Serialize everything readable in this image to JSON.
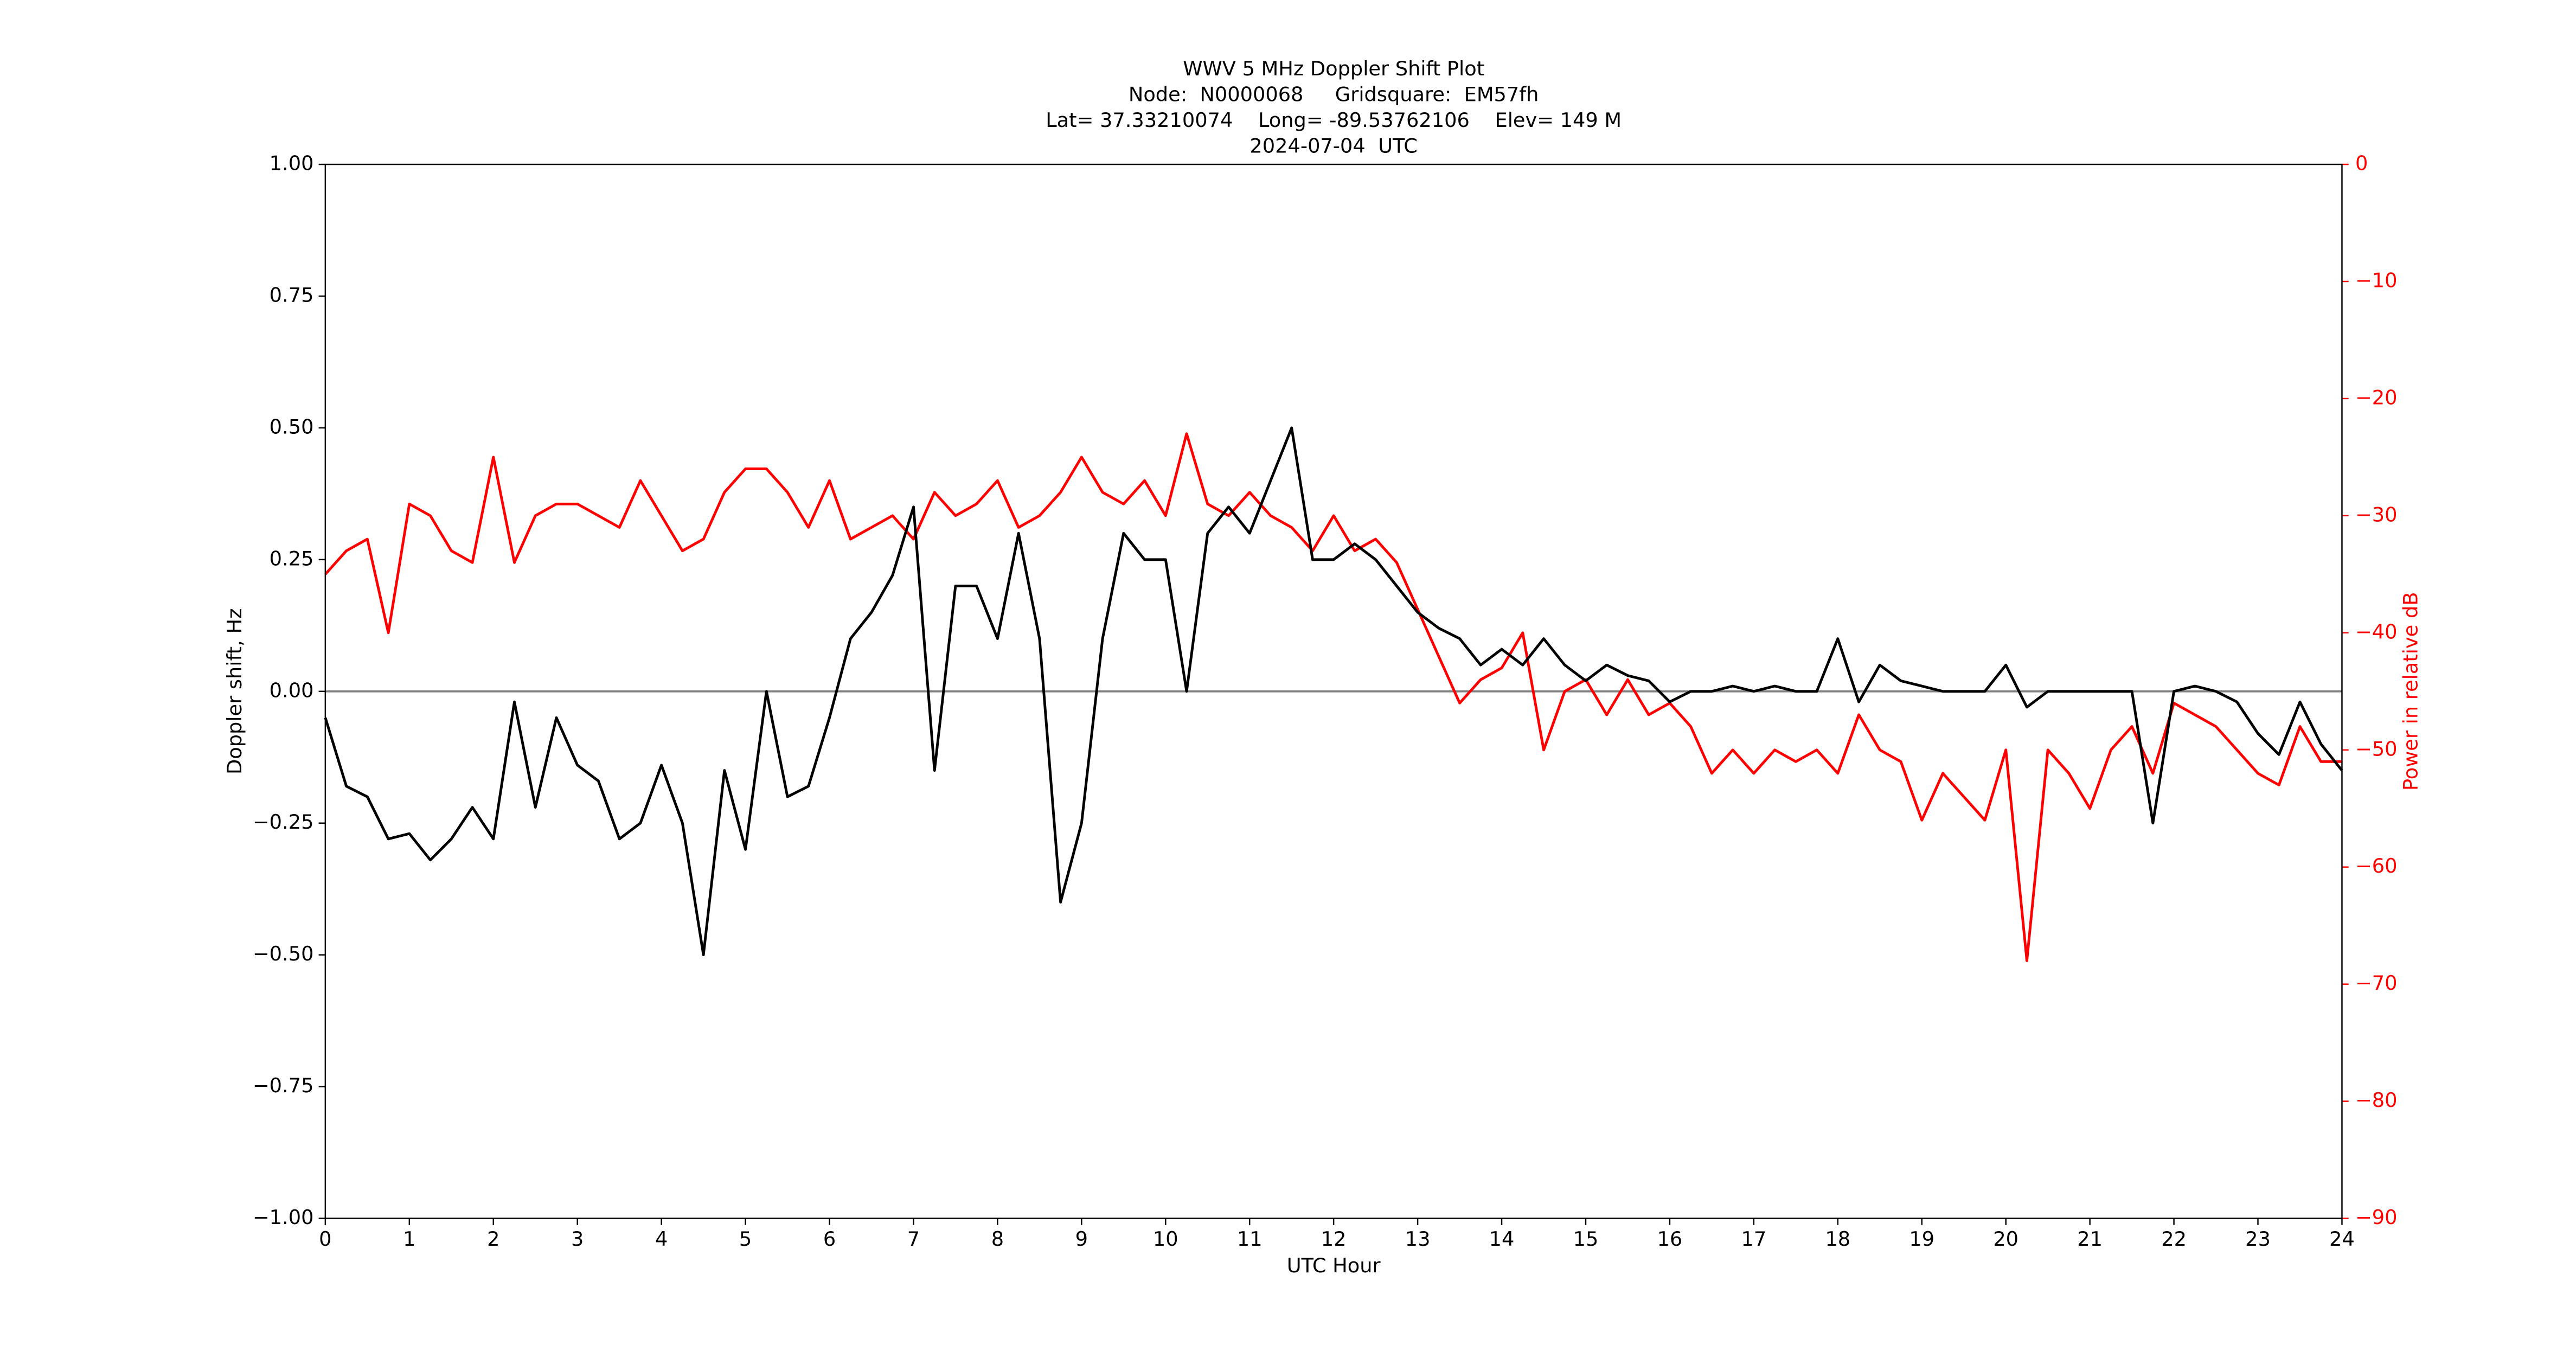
{
  "chart_data": {
    "type": "line",
    "title": [
      "WWV 5 MHz Doppler Shift Plot",
      "Node:  N0000068     Gridsquare:  EM57fh",
      "Lat= 37.33210074    Long= -89.53762106    Elev= 149 M",
      "2024-07-04  UTC"
    ],
    "x_label": "UTC Hour",
    "y_label": "Doppler shift, Hz",
    "y2_label": "Power in relative dB",
    "xlim": [
      0,
      24
    ],
    "xticks": [
      0,
      1,
      2,
      3,
      4,
      5,
      6,
      7,
      8,
      9,
      10,
      11,
      12,
      13,
      14,
      15,
      16,
      17,
      18,
      19,
      20,
      21,
      22,
      23,
      24
    ],
    "ylim": [
      -1,
      1
    ],
    "yticks": [
      {
        "value": -1,
        "label": "−1.00"
      },
      {
        "value": -0.75,
        "label": "−0.75"
      },
      {
        "value": -0.5,
        "label": "−0.50"
      },
      {
        "value": -0.25,
        "label": "−0.25"
      },
      {
        "value": 0,
        "label": "0.00"
      },
      {
        "value": 0.25,
        "label": "0.25"
      },
      {
        "value": 0.5,
        "label": "0.50"
      },
      {
        "value": 0.75,
        "label": "0.75"
      },
      {
        "value": 1,
        "label": "1.00"
      }
    ],
    "y2lim": [
      -90,
      0
    ],
    "y2ticks": [
      {
        "value": -90,
        "label": "−90"
      },
      {
        "value": -80,
        "label": "−80"
      },
      {
        "value": -70,
        "label": "−70"
      },
      {
        "value": -60,
        "label": "−60"
      },
      {
        "value": -50,
        "label": "−50"
      },
      {
        "value": -40,
        "label": "−40"
      },
      {
        "value": -30,
        "label": "−30"
      },
      {
        "value": -20,
        "label": "−20"
      },
      {
        "value": -10,
        "label": "−10"
      },
      0
    ],
    "y2_color": "#ff0000",
    "reference_line": 0,
    "reference_color": "#808080",
    "x": [
      0,
      0.25,
      0.5,
      0.75,
      1,
      1.25,
      1.5,
      1.75,
      2,
      2.25,
      2.5,
      2.75,
      3,
      3.25,
      3.5,
      3.75,
      4,
      4.25,
      4.5,
      4.75,
      5,
      5.25,
      5.5,
      5.75,
      6,
      6.25,
      6.5,
      6.75,
      7,
      7.25,
      7.5,
      7.75,
      8,
      8.25,
      8.5,
      8.75,
      9,
      9.25,
      9.5,
      9.75,
      10,
      10.25,
      10.5,
      10.75,
      11,
      11.25,
      11.5,
      11.75,
      12,
      12.25,
      12.5,
      12.75,
      13,
      13.25,
      13.5,
      13.75,
      14,
      14.25,
      14.5,
      14.75,
      15,
      15.25,
      15.5,
      15.75,
      16,
      16.25,
      16.5,
      16.75,
      17,
      17.25,
      17.5,
      17.75,
      18,
      18.25,
      18.5,
      18.75,
      19,
      19.25,
      19.5,
      19.75,
      20,
      20.25,
      20.5,
      20.75,
      21,
      21.25,
      21.5,
      21.75,
      22,
      22.25,
      22.5,
      22.75,
      23,
      23.25,
      23.5,
      23.75,
      24
    ],
    "series": [
      {
        "name": "Doppler shift",
        "color": "#000000",
        "values": [
          -0.05,
          -0.18,
          -0.2,
          -0.28,
          -0.27,
          -0.32,
          -0.28,
          -0.22,
          -0.28,
          -0.02,
          -0.22,
          -0.05,
          -0.14,
          -0.17,
          -0.28,
          -0.25,
          -0.14,
          -0.25,
          -0.5,
          -0.15,
          -0.3,
          0.0,
          -0.2,
          -0.18,
          -0.05,
          0.1,
          0.15,
          0.22,
          0.35,
          -0.15,
          0.2,
          0.2,
          0.1,
          0.3,
          0.1,
          -0.4,
          -0.25,
          0.1,
          0.3,
          0.25,
          0.25,
          0.0,
          0.3,
          0.35,
          0.3,
          0.4,
          0.5,
          0.25,
          0.25,
          0.28,
          0.25,
          0.2,
          0.15,
          0.12,
          0.1,
          0.05,
          0.08,
          0.05,
          0.1,
          0.05,
          0.02,
          0.05,
          0.03,
          0.02,
          -0.02,
          0.0,
          0.0,
          0.01,
          0.0,
          0.01,
          0.0,
          0.0,
          0.1,
          -0.02,
          0.05,
          0.02,
          0.01,
          0.0,
          0.0,
          0.0,
          0.05,
          -0.03,
          0.0,
          0.0,
          0.0,
          0.0,
          0.0,
          -0.25,
          0.0,
          0.01,
          0.0,
          -0.02,
          -0.08,
          -0.12,
          -0.02,
          -0.1,
          -0.15
        ]
      },
      {
        "name": "Power",
        "color": "#ff0000",
        "axis": "y2",
        "values": [
          -35,
          -33,
          -32,
          -40,
          -29,
          -30,
          -33,
          -34,
          -25,
          -34,
          -30,
          -29,
          -29,
          -30,
          -31,
          -27,
          -30,
          -33,
          -32,
          -28,
          -26,
          -26,
          -28,
          -31,
          -27,
          -32,
          -31,
          -30,
          -32,
          -28,
          -30,
          -29,
          -27,
          -31,
          -30,
          -28,
          -25,
          -28,
          -29,
          -27,
          -30,
          -23,
          -29,
          -30,
          -28,
          -30,
          -31,
          -33,
          -30,
          -33,
          -32,
          -34,
          -38,
          -42,
          -46,
          -44,
          -43,
          -40,
          -50,
          -45,
          -44,
          -47,
          -44,
          -47,
          -46,
          -48,
          -52,
          -50,
          -52,
          -50,
          -51,
          -50,
          -52,
          -47,
          -50,
          -51,
          -56,
          -52,
          -54,
          -56,
          -50,
          -68,
          -50,
          -52,
          -55,
          -50,
          -48,
          -52,
          -46,
          -47,
          -48,
          -50,
          -52,
          -53,
          -48,
          -51,
          -51
        ]
      }
    ]
  }
}
